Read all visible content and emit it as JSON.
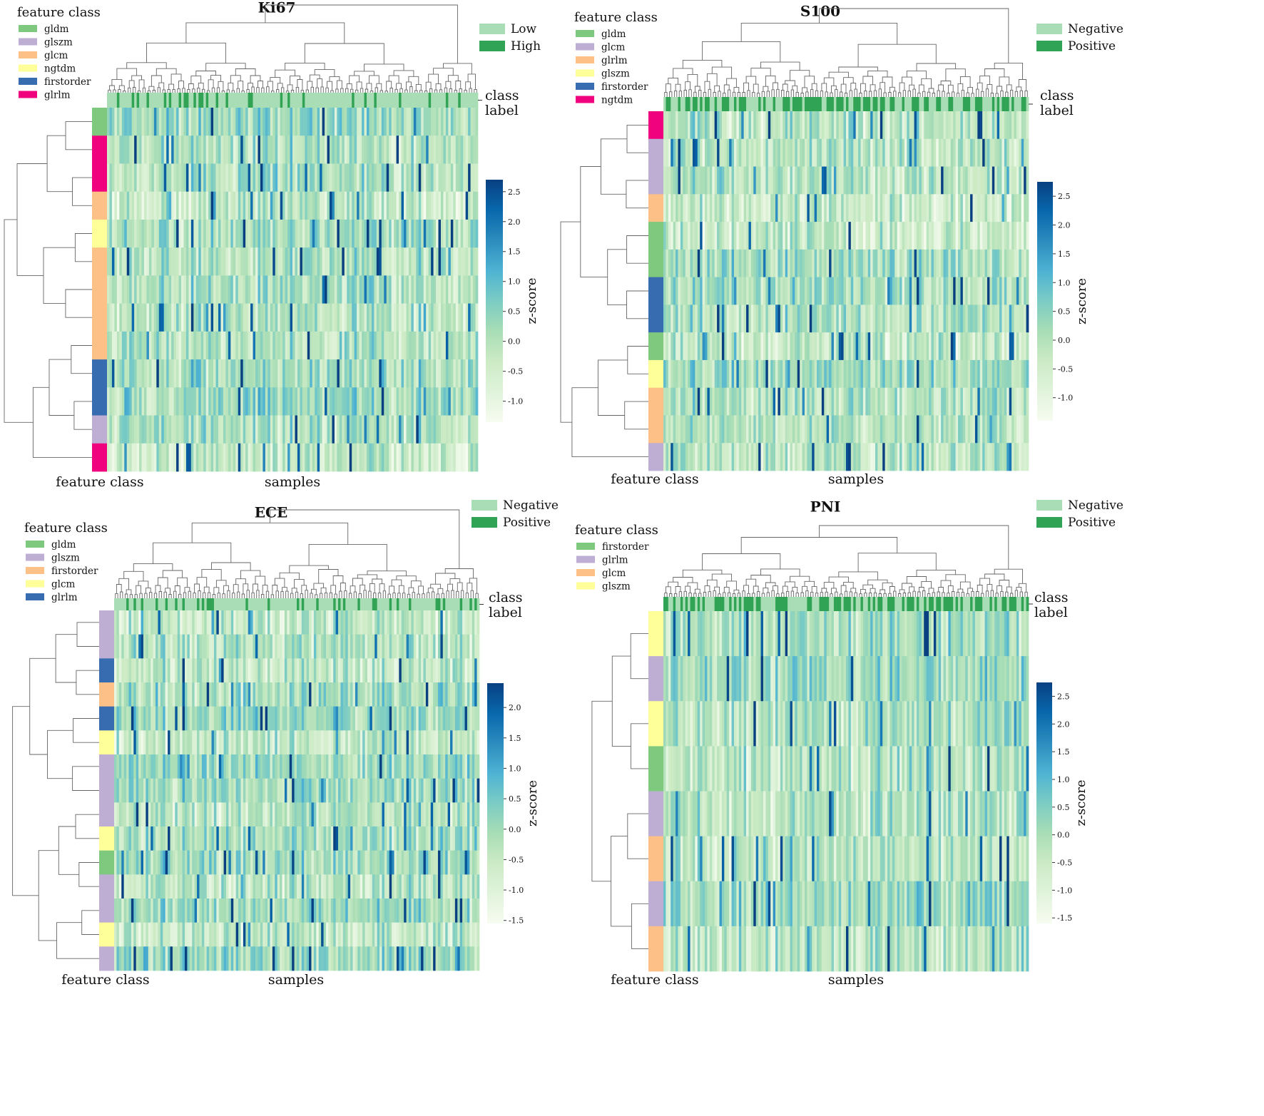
{
  "chart_data": [
    {
      "type": "heatmap",
      "title": "Ki67",
      "xlabel": "samples",
      "ylabel": "feature class",
      "class_label": [
        "class",
        "label"
      ],
      "legend_title": "feature class",
      "feature_classes": [
        {
          "name": "gldm",
          "color": "#7fc97f"
        },
        {
          "name": "glszm",
          "color": "#beaed4"
        },
        {
          "name": "glcm",
          "color": "#fdc086"
        },
        {
          "name": "ngtdm",
          "color": "#ffff99"
        },
        {
          "name": "firstorder",
          "color": "#386cb0"
        },
        {
          "name": "glrlm",
          "color": "#f0027f"
        }
      ],
      "class_legend": [
        {
          "name": "Low",
          "color": "#a8ddb5"
        },
        {
          "name": "High",
          "color": "#31a354"
        }
      ],
      "row_classes": [
        "gldm",
        "glrlm",
        "glrlm",
        "glcm",
        "ngtdm",
        "glcm",
        "glcm",
        "glcm",
        "glcm",
        "firstorder",
        "firstorder",
        "glszm",
        "glrlm"
      ],
      "colorbar": {
        "label": "z-score",
        "min": -1.35,
        "max": 2.7,
        "ticks": [
          2.5,
          2.0,
          1.5,
          1.0,
          0.5,
          0.0,
          -0.5,
          -1.0
        ],
        "tick_labels": [
          "2.5",
          "2.0",
          "1.5",
          "1.0",
          "0.5",
          "0.0",
          "-0.5",
          "-1.0"
        ]
      },
      "n_samples": 150,
      "positive_fraction": 0.18,
      "seed": 11
    },
    {
      "type": "heatmap",
      "title": "S100",
      "xlabel": "samples",
      "ylabel": "feature class",
      "class_label": [
        "class",
        "label"
      ],
      "legend_title": "feature class",
      "feature_classes": [
        {
          "name": "gldm",
          "color": "#7fc97f"
        },
        {
          "name": "glcm",
          "color": "#beaed4"
        },
        {
          "name": "glrlm",
          "color": "#fdc086"
        },
        {
          "name": "glszm",
          "color": "#ffff99"
        },
        {
          "name": "firstorder",
          "color": "#386cb0"
        },
        {
          "name": "ngtdm",
          "color": "#f0027f"
        }
      ],
      "class_legend": [
        {
          "name": "Negative",
          "color": "#a8ddb5"
        },
        {
          "name": "Positive",
          "color": "#31a354"
        }
      ],
      "row_classes": [
        "ngtdm",
        "glcm",
        "glcm",
        "glrlm",
        "gldm",
        "gldm",
        "firstorder",
        "firstorder",
        "gldm",
        "glszm",
        "glrlm",
        "glrlm",
        "glcm"
      ],
      "colorbar": {
        "label": "z-score",
        "min": -1.4,
        "max": 2.75,
        "ticks": [
          2.5,
          2.0,
          1.5,
          1.0,
          0.5,
          0.0,
          -0.5,
          -1.0
        ],
        "tick_labels": [
          "2.5",
          "2.0",
          "1.5",
          "1.0",
          "0.5",
          "0.0",
          "-0.5",
          "-1.0"
        ]
      },
      "n_samples": 150,
      "positive_fraction": 0.5,
      "seed": 23
    },
    {
      "type": "heatmap",
      "title": "ECE",
      "xlabel": "samples",
      "ylabel": "feature class",
      "class_label": [
        "class",
        "label"
      ],
      "legend_title": "feature class",
      "feature_classes": [
        {
          "name": "gldm",
          "color": "#7fc97f"
        },
        {
          "name": "glszm",
          "color": "#beaed4"
        },
        {
          "name": "firstorder",
          "color": "#fdc086"
        },
        {
          "name": "glcm",
          "color": "#ffff99"
        },
        {
          "name": "glrlm",
          "color": "#386cb0"
        }
      ],
      "class_legend": [
        {
          "name": "Negative",
          "color": "#a8ddb5"
        },
        {
          "name": "Positive",
          "color": "#31a354"
        }
      ],
      "row_classes": [
        "glszm",
        "glszm",
        "glrlm",
        "firstorder",
        "glrlm",
        "glcm",
        "glszm",
        "glszm",
        "glszm",
        "glcm",
        "gldm",
        "glszm",
        "glszm",
        "glcm",
        "glszm"
      ],
      "colorbar": {
        "label": "z-score",
        "min": -1.55,
        "max": 2.4,
        "ticks": [
          2.0,
          1.5,
          1.0,
          0.5,
          0.0,
          -0.5,
          -1.0,
          -1.5
        ],
        "tick_labels": [
          "2.0",
          "1.5",
          "1.0",
          "0.5",
          "0.0",
          "-0.5",
          "-1.0",
          "-1.5"
        ]
      },
      "n_samples": 150,
      "positive_fraction": 0.22,
      "seed": 37
    },
    {
      "type": "heatmap",
      "title": "PNI",
      "xlabel": "samples",
      "ylabel": "feature class",
      "class_label": [
        "class",
        "label"
      ],
      "legend_title": "feature class",
      "feature_classes": [
        {
          "name": "firstorder",
          "color": "#7fc97f"
        },
        {
          "name": "glrlm",
          "color": "#beaed4"
        },
        {
          "name": "glcm",
          "color": "#fdc086"
        },
        {
          "name": "glszm",
          "color": "#ffff99"
        }
      ],
      "class_legend": [
        {
          "name": "Negative",
          "color": "#a8ddb5"
        },
        {
          "name": "Positive",
          "color": "#31a354"
        }
      ],
      "row_classes": [
        "glszm",
        "glrlm",
        "glszm",
        "firstorder",
        "glrlm",
        "glcm",
        "glrlm",
        "glcm"
      ],
      "colorbar": {
        "label": "z-score",
        "min": -1.6,
        "max": 2.75,
        "ticks": [
          2.5,
          2.0,
          1.5,
          1.0,
          0.5,
          0.0,
          -0.5,
          -1.0,
          -1.5
        ],
        "tick_labels": [
          "2.5",
          "2.0",
          "1.5",
          "1.0",
          "0.5",
          "0.0",
          "-0.5",
          "-1.0",
          "-1.5"
        ]
      },
      "n_samples": 150,
      "positive_fraction": 0.55,
      "seed": 53
    }
  ]
}
